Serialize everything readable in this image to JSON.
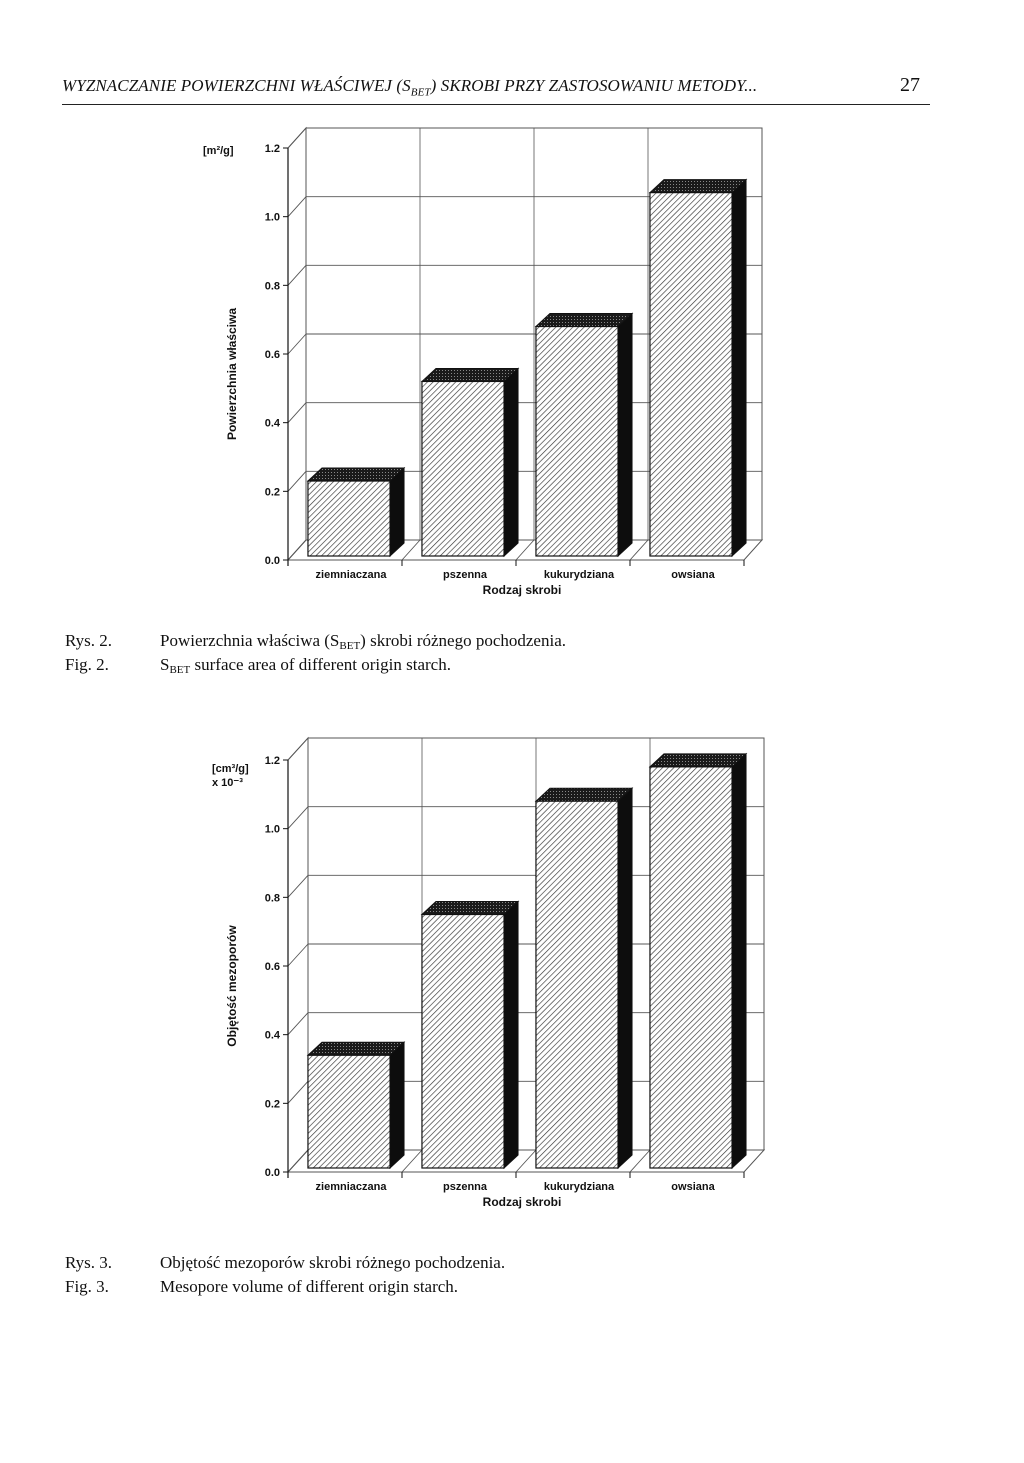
{
  "page": {
    "running_head": "WYZNACZANIE POWIERZCHNI WŁAŚCIWEJ (S",
    "running_head_sub": "BET",
    "running_head_rest": ") SKROBI PRZY ZASTOSOWANIU METODY...",
    "page_number": "27"
  },
  "captions": {
    "fig2_pl_label": "Rys. 2.",
    "fig2_pl_text_a": "Powierzchnia właściwa (S",
    "fig2_pl_text_sub": "BET",
    "fig2_pl_text_b": ") skrobi różnego pochodzenia.",
    "fig2_en_label": "Fig. 2.",
    "fig2_en_text_pre": "S",
    "fig2_en_text_sub": "BET",
    "fig2_en_text_b": " surface area of different origin starch.",
    "fig3_pl_label": "Rys. 3.",
    "fig3_pl_text": "Objętość mezoporów skrobi różnego pochodzenia.",
    "fig3_en_label": "Fig. 3.",
    "fig3_en_text": "Mesopore volume of different origin starch."
  },
  "chart_data": [
    {
      "type": "bar",
      "style": "3d-hatched",
      "categories": [
        "ziemniaczana",
        "pszenna",
        "kukurydziana",
        "owsiana"
      ],
      "values": [
        0.23,
        0.52,
        0.68,
        1.07
      ],
      "ylim": [
        0,
        1.2
      ],
      "yticks": [
        "0.0",
        "0.2",
        "0.4",
        "0.6",
        "0.8",
        "1.0",
        "1.2"
      ],
      "unit_label": "[m²/g]",
      "unit_label_line2": "",
      "ylabel": "Powierzchnia właściwa",
      "xlabel": "Rodzaj skrobi",
      "grid": true
    },
    {
      "type": "bar",
      "style": "3d-hatched",
      "categories": [
        "ziemniaczana",
        "pszenna",
        "kukurydziana",
        "owsiana"
      ],
      "values": [
        0.34,
        0.75,
        1.08,
        1.18
      ],
      "ylim": [
        0,
        1.2
      ],
      "yticks": [
        "0.0",
        "0.2",
        "0.4",
        "0.6",
        "0.8",
        "1.0",
        "1.2"
      ],
      "unit_label": "[cm³/g]",
      "unit_label_line2": "x 10⁻³",
      "ylabel": "Objętość mezoporów",
      "xlabel": "Rodzaj skrobi",
      "grid": true
    }
  ],
  "colors": {
    "ink": "#111111",
    "grid": "#555555",
    "bar_face": "#ffffff",
    "bar_top": "#1a1a1a",
    "bar_side": "#0d0d0d"
  }
}
